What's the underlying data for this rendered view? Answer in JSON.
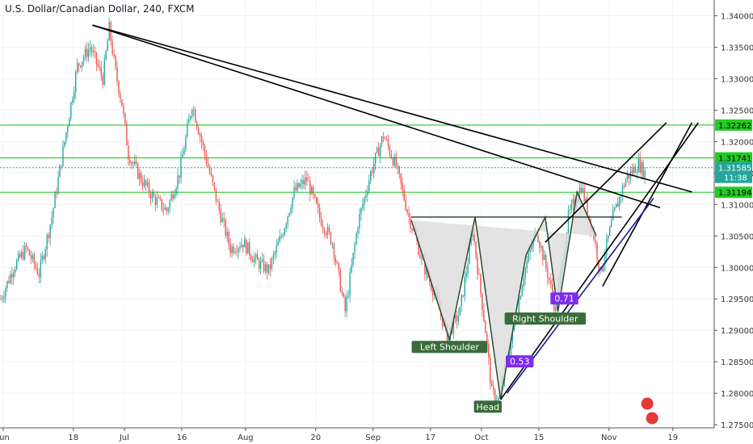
{
  "chart_data": {
    "type": "candlestick",
    "title": "U.S. Dollar/Canadian Dollar, 240, FXCM",
    "ylim": [
      1.2745,
      1.3425
    ],
    "yticks": [
      "1.34000",
      "1.33500",
      "1.33000",
      "1.32500",
      "1.32000",
      "1.31500",
      "1.31000",
      "1.30500",
      "1.30000",
      "1.29500",
      "1.29000",
      "1.28500",
      "1.28000",
      "1.27500"
    ],
    "xticks": [
      {
        "label": "Jun",
        "i": 0
      },
      {
        "label": "18",
        "i": 11
      },
      {
        "label": "Jul",
        "i": 19
      },
      {
        "label": "16",
        "i": 28
      },
      {
        "label": "Aug",
        "i": 38
      },
      {
        "label": "20",
        "i": 49
      },
      {
        "label": "Sep",
        "i": 58
      },
      {
        "label": "17",
        "i": 67
      },
      {
        "label": "Oct",
        "i": 75
      },
      {
        "label": "15",
        "i": 84
      },
      {
        "label": "Nov",
        "i": 95
      },
      {
        "label": "19",
        "i": 105
      }
    ],
    "up_color": "#26a69a",
    "down_color": "#ef5350",
    "price_path": [
      [
        0,
        1.295
      ],
      [
        2,
        1.3
      ],
      [
        4,
        1.303
      ],
      [
        6,
        1.299
      ],
      [
        8,
        1.308
      ],
      [
        10,
        1.32
      ],
      [
        12,
        1.332
      ],
      [
        14,
        1.335
      ],
      [
        16,
        1.33
      ],
      [
        17,
        1.338
      ],
      [
        18,
        1.331
      ],
      [
        19,
        1.326
      ],
      [
        20,
        1.318
      ],
      [
        22,
        1.314
      ],
      [
        24,
        1.311
      ],
      [
        26,
        1.309
      ],
      [
        28,
        1.315
      ],
      [
        30,
        1.326
      ],
      [
        32,
        1.318
      ],
      [
        34,
        1.31
      ],
      [
        36,
        1.303
      ],
      [
        38,
        1.304
      ],
      [
        40,
        1.301
      ],
      [
        42,
        1.2995
      ],
      [
        44,
        1.305
      ],
      [
        46,
        1.312
      ],
      [
        48,
        1.314
      ],
      [
        50,
        1.308
      ],
      [
        52,
        1.304
      ],
      [
        54,
        1.293
      ],
      [
        56,
        1.307
      ],
      [
        58,
        1.315
      ],
      [
        60,
        1.321
      ],
      [
        62,
        1.316
      ],
      [
        64,
        1.308
      ],
      [
        65,
        1.305
      ],
      [
        66,
        1.301
      ],
      [
        68,
        1.296
      ],
      [
        70,
        1.289
      ],
      [
        72,
        1.293
      ],
      [
        74,
        1.306
      ],
      [
        76,
        1.29
      ],
      [
        77,
        1.28
      ],
      [
        78,
        1.279
      ],
      [
        80,
        1.288
      ],
      [
        82,
        1.299
      ],
      [
        84,
        1.306
      ],
      [
        86,
        1.298
      ],
      [
        87,
        1.293
      ],
      [
        89,
        1.308
      ],
      [
        91,
        1.313
      ],
      [
        93,
        1.305
      ],
      [
        94,
        1.299
      ],
      [
        96,
        1.308
      ],
      [
        98,
        1.314
      ],
      [
        100,
        1.3165
      ],
      [
        101,
        1.315
      ]
    ],
    "horizontal_levels": [
      {
        "value": 1.32262,
        "label": "1.32262",
        "color": "#22cc22"
      },
      {
        "value": 1.31741,
        "label": "1.31741",
        "color": "#22cc22"
      },
      {
        "value": 1.31194,
        "label": "1.31194",
        "color": "#22cc22"
      }
    ],
    "current_price": {
      "value": 1.31585,
      "label": "1.31585",
      "countdown": "11:38",
      "color": "#26a69a"
    },
    "trendlines": [
      {
        "from": [
          14,
          1.3385
        ],
        "to": [
          108,
          1.312
        ],
        "color": "#000000"
      },
      {
        "from": [
          14,
          1.3385
        ],
        "to": [
          103,
          1.3095
        ],
        "color": "#000000"
      },
      {
        "from": [
          94,
          1.297
        ],
        "to": [
          108,
          1.323
        ],
        "color": "#000000"
      },
      {
        "from": [
          85,
          1.304
        ],
        "to": [
          104,
          1.323
        ],
        "color": "#000000"
      },
      {
        "from": [
          78,
          1.279
        ],
        "to": [
          109,
          1.323
        ],
        "color": "#000000"
      },
      {
        "from": [
          79,
          1.28
        ],
        "to": [
          102,
          1.311
        ],
        "color": "#1a1aa0"
      }
    ],
    "head_and_shoulders": {
      "neckline": [
        [
          64,
          1.308
        ],
        [
          97,
          1.308
        ]
      ],
      "points": [
        [
          64,
          1.3075
        ],
        [
          70,
          1.2885
        ],
        [
          74,
          1.308
        ],
        [
          78,
          1.279
        ],
        [
          82,
          1.302
        ],
        [
          85,
          1.308
        ],
        [
          87,
          1.293
        ],
        [
          90,
          1.312
        ],
        [
          93,
          1.305
        ]
      ],
      "color": "#2e4a2e",
      "fill": "#dcdcdc"
    },
    "labels": [
      {
        "text": "Left Shoulder",
        "i": 70,
        "v": 1.2873,
        "style": "green"
      },
      {
        "text": "Head",
        "i": 76,
        "v": 1.2778,
        "style": "green"
      },
      {
        "text": "Right Shoulder",
        "i": 85,
        "v": 1.2918,
        "style": "green"
      },
      {
        "text": "0.53",
        "i": 81,
        "v": 1.285,
        "style": "purple"
      },
      {
        "text": "0.71",
        "i": 88,
        "v": 1.295,
        "style": "purple"
      }
    ]
  }
}
